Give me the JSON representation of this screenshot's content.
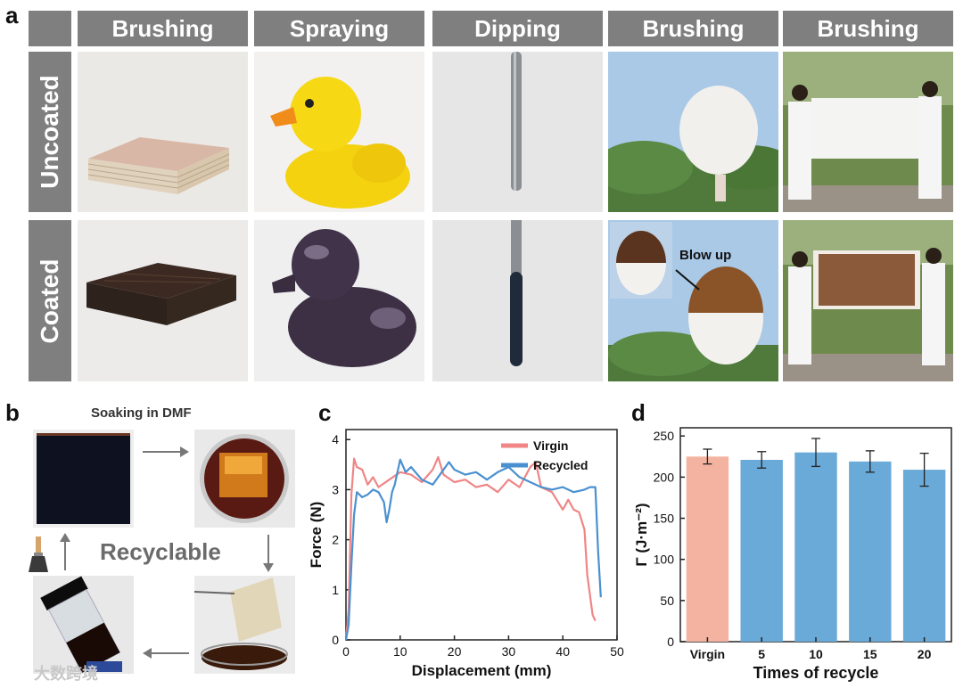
{
  "panel_a": {
    "letter": "a",
    "columns": [
      "Brushing",
      "Spraying",
      "Dipping",
      "Brushing",
      "Brushing"
    ],
    "rows": [
      "Uncoated",
      "Coated"
    ],
    "annotation": "Blow up"
  },
  "panel_b": {
    "letter": "b",
    "title": "Soaking in DMF",
    "center_label": "Recyclable"
  },
  "panel_c": {
    "letter": "c",
    "chart_data": {
      "type": "line",
      "xlabel": "Displacement (mm)",
      "ylabel": "Force (N)",
      "xlim": [
        0,
        50
      ],
      "ylim": [
        0,
        4.2
      ],
      "xticks": [
        0,
        10,
        20,
        30,
        40,
        50
      ],
      "yticks": [
        0,
        1,
        2,
        3,
        4
      ],
      "legend_position": "top-right",
      "series": [
        {
          "name": "Virgin",
          "color": "#f08585",
          "x": [
            0,
            0.5,
            1,
            1.5,
            2,
            3,
            4,
            5,
            6,
            8,
            10,
            12,
            14,
            16,
            17,
            18,
            20,
            22,
            24,
            26,
            28,
            30,
            32,
            34,
            35,
            36,
            38,
            40,
            41,
            42,
            43,
            44,
            44.5,
            45,
            45.5,
            46
          ],
          "y": [
            0,
            0.6,
            2.9,
            3.62,
            3.45,
            3.4,
            3.1,
            3.25,
            3.05,
            3.2,
            3.35,
            3.3,
            3.15,
            3.4,
            3.65,
            3.3,
            3.15,
            3.2,
            3.05,
            3.1,
            2.95,
            3.2,
            3.05,
            3.45,
            3.55,
            3.05,
            2.95,
            2.6,
            2.8,
            2.6,
            2.55,
            2.2,
            1.3,
            0.9,
            0.5,
            0.38
          ]
        },
        {
          "name": "Recycled",
          "color": "#4a90d0",
          "x": [
            0,
            0.5,
            1,
            1.5,
            2,
            3,
            4,
            5,
            6,
            7,
            7.5,
            8,
            8.5,
            9,
            10,
            11,
            12,
            14,
            16,
            18,
            19,
            20,
            22,
            24,
            26,
            28,
            30,
            32,
            34,
            36,
            38,
            40,
            42,
            44,
            45,
            46,
            46.5,
            47
          ],
          "y": [
            0,
            0.3,
            1.5,
            2.5,
            2.95,
            2.85,
            2.9,
            3.0,
            2.95,
            2.75,
            2.35,
            2.6,
            2.95,
            3.1,
            3.6,
            3.35,
            3.45,
            3.2,
            3.1,
            3.4,
            3.55,
            3.4,
            3.3,
            3.35,
            3.2,
            3.35,
            3.45,
            3.25,
            3.15,
            3.05,
            3.0,
            3.05,
            2.95,
            3.0,
            3.05,
            3.05,
            1.8,
            0.85
          ]
        }
      ]
    }
  },
  "panel_d": {
    "letter": "d",
    "chart_data": {
      "type": "bar",
      "categories": [
        "Virgin",
        "5",
        "10",
        "15",
        "20"
      ],
      "values": [
        225,
        221,
        230,
        219,
        209
      ],
      "errors": [
        9,
        10,
        17,
        13,
        20
      ],
      "colors": [
        "#f4b3a0",
        "#6aaad8",
        "#6aaad8",
        "#6aaad8",
        "#6aaad8"
      ],
      "xlabel": "Times of recycle",
      "ylabel": "Γ (J·m⁻²)",
      "ylim": [
        0,
        260
      ],
      "yticks": [
        0,
        50,
        100,
        150,
        200,
        250
      ]
    }
  },
  "watermark": "大数跨境"
}
